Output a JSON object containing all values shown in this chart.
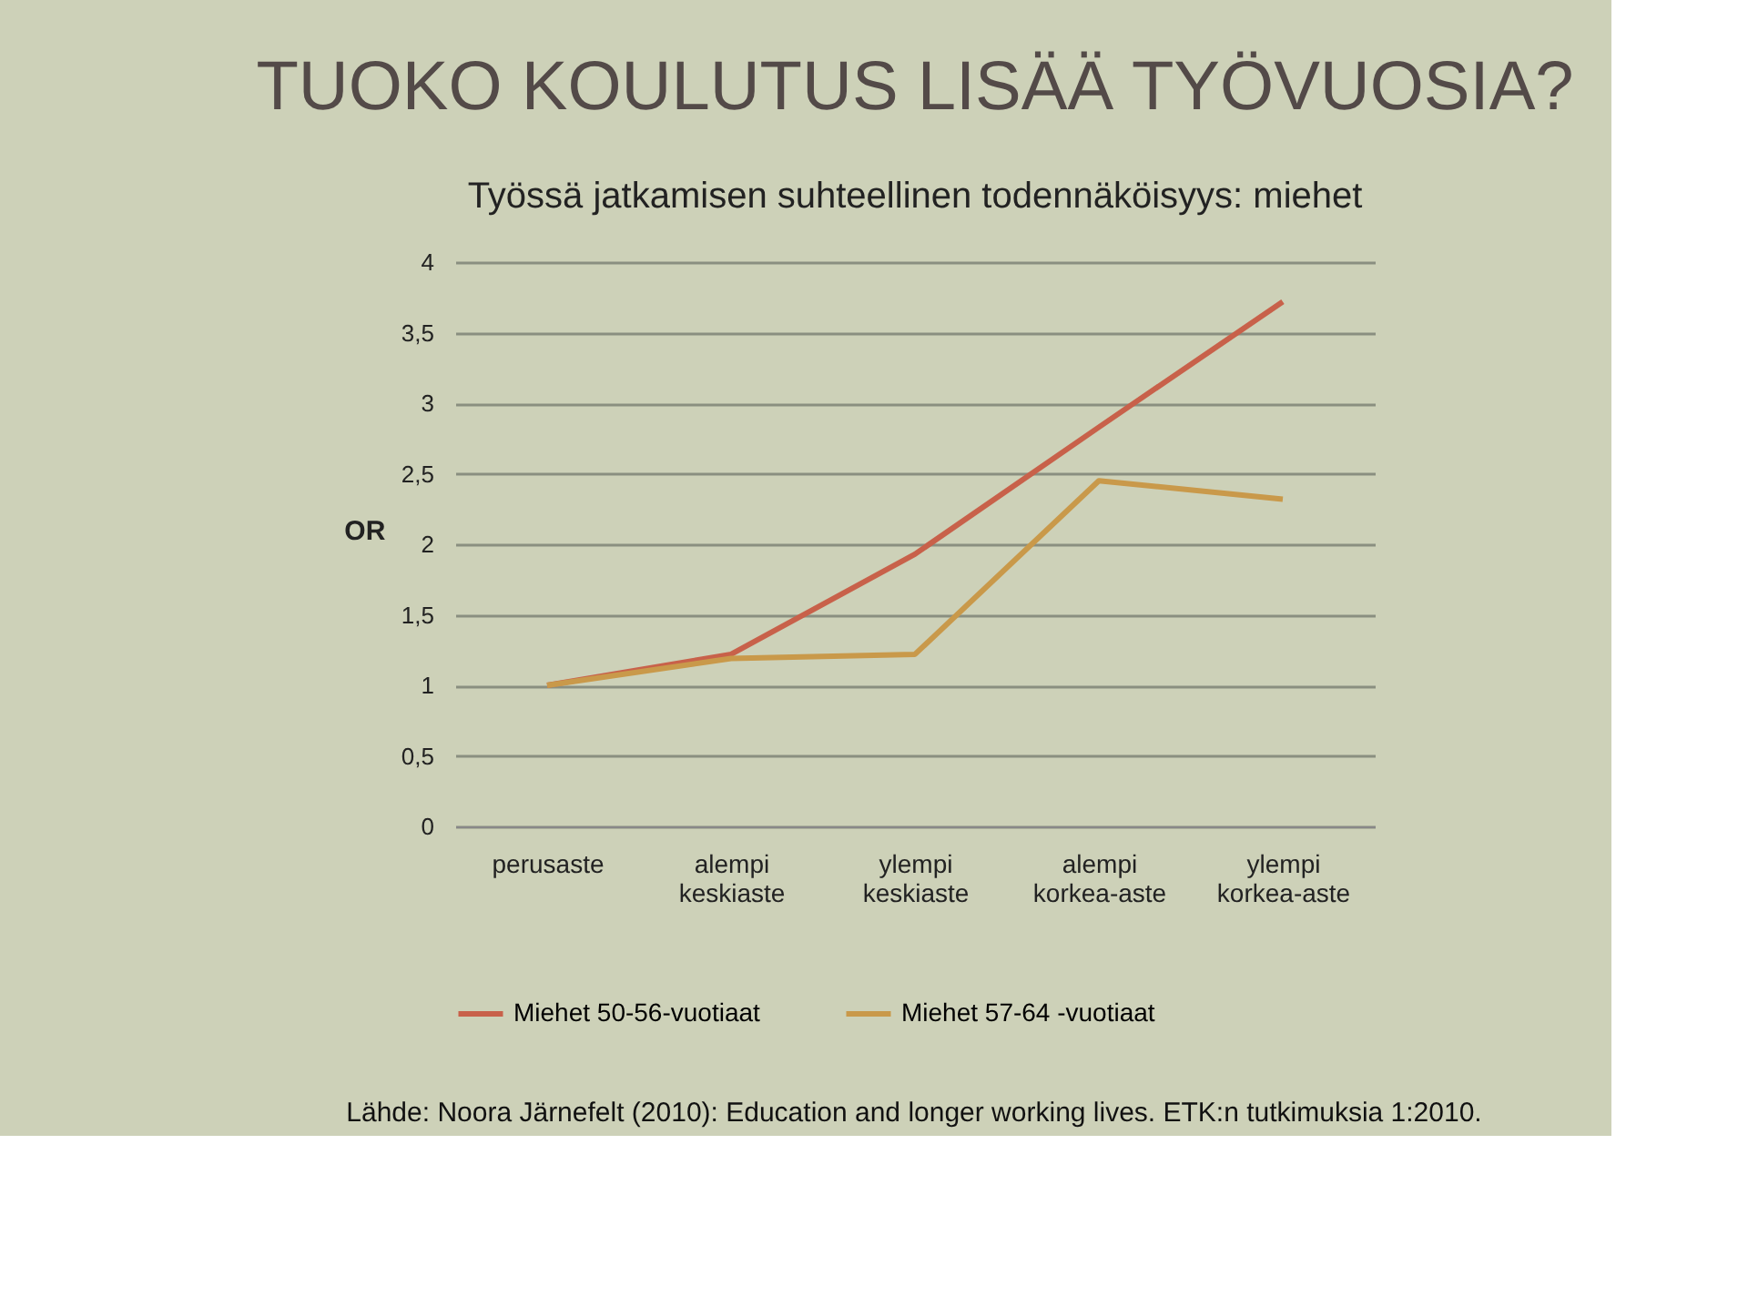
{
  "chart_data": {
    "type": "line",
    "title": "TUOKO KOULUTUS LISÄÄ TYÖVUOSIA?",
    "subtitle": "Työssä jatkamisen suhteellinen todennäköisyys: miehet",
    "ylabel": "OR",
    "categories": [
      "perusaste",
      "alempi keskiaste",
      "ylempi keskiaste",
      "alempi korkea-aste",
      "ylempi korkea-aste"
    ],
    "series": [
      {
        "name": "Miehet 50-56-vuotiaat",
        "color": "#c8614a",
        "values": [
          1,
          1.22,
          1.93,
          2.83,
          3.72
        ]
      },
      {
        "name": "Miehet 57-64 -vuotiaat",
        "color": "#c9994a",
        "values": [
          1,
          1.19,
          1.22,
          2.45,
          2.32
        ]
      }
    ],
    "ylim": [
      0,
      4
    ],
    "yticks": [
      {
        "value": 0,
        "label": "0"
      },
      {
        "value": 0.5,
        "label": "0,5"
      },
      {
        "value": 1,
        "label": "1"
      },
      {
        "value": 1.5,
        "label": "1,5"
      },
      {
        "value": 2,
        "label": "2"
      },
      {
        "value": 2.5,
        "label": "2,5"
      },
      {
        "value": 3,
        "label": "3"
      },
      {
        "value": 3.5,
        "label": "3,5"
      },
      {
        "value": 4,
        "label": "4"
      }
    ],
    "grid": "y",
    "legend": "bottom",
    "marker": "none",
    "line_style": "solid",
    "annotations": [
      "Lähde: Noora Järnefelt (2010): Education and longer working lives. ETK:n tutkimuksia 1:2010."
    ]
  }
}
